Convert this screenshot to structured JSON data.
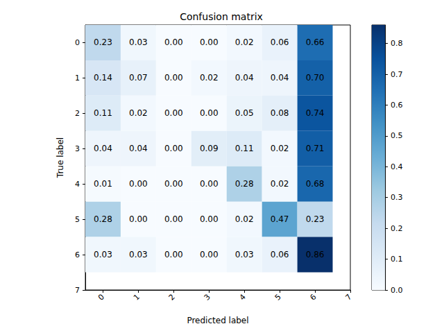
{
  "chart_data": {
    "type": "heatmap",
    "title": "Confusion matrix",
    "x_label": "Predicted label",
    "y_label": "True label",
    "xlim": [
      -0.5,
      7
    ],
    "ylim": [
      7,
      -0.5
    ],
    "xticks": [
      0,
      1,
      2,
      3,
      4,
      5,
      6,
      7
    ],
    "yticks": [
      0,
      1,
      2,
      3,
      4,
      5,
      6,
      7
    ],
    "data_labels": true,
    "values": [
      [
        0.23,
        0.03,
        0.0,
        0.0,
        0.02,
        0.06,
        0.66
      ],
      [
        0.14,
        0.07,
        0.0,
        0.02,
        0.04,
        0.04,
        0.7
      ],
      [
        0.11,
        0.02,
        0.0,
        0.0,
        0.05,
        0.08,
        0.74
      ],
      [
        0.04,
        0.04,
        0.0,
        0.09,
        0.11,
        0.02,
        0.71
      ],
      [
        0.01,
        0.0,
        0.0,
        0.0,
        0.28,
        0.02,
        0.68
      ],
      [
        0.28,
        0.0,
        0.0,
        0.0,
        0.02,
        0.47,
        0.23
      ],
      [
        0.03,
        0.03,
        0.0,
        0.0,
        0.03,
        0.06,
        0.86
      ]
    ],
    "value_labels": [
      [
        "0.23",
        "0.03",
        "0.00",
        "0.00",
        "0.02",
        "0.06",
        "0.66"
      ],
      [
        "0.14",
        "0.07",
        "0.00",
        "0.02",
        "0.04",
        "0.04",
        "0.70"
      ],
      [
        "0.11",
        "0.02",
        "0.00",
        "0.00",
        "0.05",
        "0.08",
        "0.74"
      ],
      [
        "0.04",
        "0.04",
        "0.00",
        "0.09",
        "0.11",
        "0.02",
        "0.71"
      ],
      [
        "0.01",
        "0.00",
        "0.00",
        "0.00",
        "0.28",
        "0.02",
        "0.68"
      ],
      [
        "0.28",
        "0.00",
        "0.00",
        "0.00",
        "0.02",
        "0.47",
        "0.23"
      ],
      [
        "0.03",
        "0.03",
        "0.00",
        "0.00",
        "0.03",
        "0.06",
        "0.86"
      ]
    ],
    "colorbar": {
      "range": [
        0,
        0.86
      ],
      "ticks": [
        {
          "value": 0,
          "label": "0.0"
        },
        {
          "value": 0.1,
          "label": "0.1"
        },
        {
          "value": 0.2,
          "label": "0.2"
        },
        {
          "value": 0.3,
          "label": "0.3"
        },
        {
          "value": 0.4,
          "label": "0.4"
        },
        {
          "value": 0.5,
          "label": "0.5"
        },
        {
          "value": 0.6,
          "label": "0.6"
        },
        {
          "value": 0.7,
          "label": "0.7"
        },
        {
          "value": 0.8,
          "label": "0.8"
        }
      ]
    }
  }
}
